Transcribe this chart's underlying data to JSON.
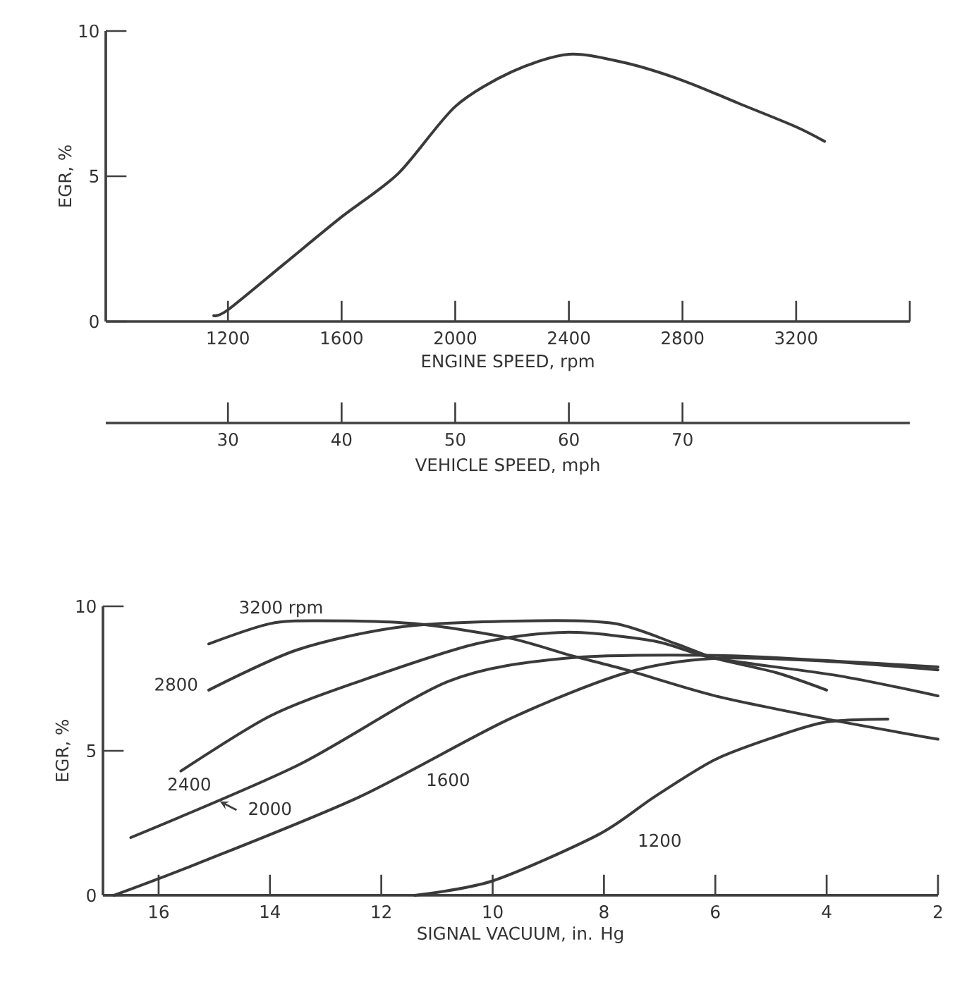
{
  "chart_data": [
    {
      "type": "line",
      "xlabel": "ENGINE SPEED, rpm",
      "ylabel": "EGR, %",
      "x2label": "VEHICLE SPEED, mph",
      "xlim": [
        770,
        3600
      ],
      "xticks": [
        1200,
        1600,
        2000,
        2400,
        2800,
        3200,
        {
          "value": 3600,
          "label": null
        }
      ],
      "x2lim": [
        19.25,
        90
      ],
      "x2ticks": [
        30,
        40,
        50,
        60,
        70
      ],
      "ylim": [
        0,
        10
      ],
      "yticks": [
        0,
        5,
        10
      ],
      "series": [
        {
          "color": "#3a3a3a",
          "x": [
            1150,
            1200,
            1400,
            1600,
            1800,
            2000,
            2200,
            2400,
            2600,
            2800,
            3000,
            3200,
            3300
          ],
          "values": [
            0.2,
            0.4,
            2.0,
            3.6,
            5.1,
            7.4,
            8.6,
            9.2,
            8.9,
            8.3,
            7.5,
            6.7,
            6.2
          ]
        }
      ]
    },
    {
      "type": "line",
      "xlabel": "SIGNAL VACUUM, in. Hg",
      "ylabel": "EGR, %",
      "xlim": [
        17,
        2
      ],
      "xticks": [
        16,
        14,
        12,
        10,
        8,
        6,
        4,
        2
      ],
      "ylim": [
        0,
        10
      ],
      "yticks": [
        0,
        5,
        10
      ],
      "series": [
        {
          "name": "3200 rpm",
          "color": "#3a3a3a",
          "x": [
            15.1,
            14.0,
            13.1,
            11.4,
            9.7,
            8.6,
            7.6,
            6.0,
            4.0,
            2.0
          ],
          "values": [
            8.7,
            9.4,
            9.5,
            9.4,
            8.9,
            8.3,
            7.8,
            6.9,
            6.1,
            5.4
          ]
        },
        {
          "name": "2800",
          "color": "#3a3a3a",
          "x": [
            15.1,
            13.5,
            11.6,
            9.2,
            7.8,
            6.7,
            6.0,
            4.9,
            4.0
          ],
          "values": [
            7.1,
            8.5,
            9.3,
            9.5,
            9.4,
            8.7,
            8.2,
            7.7,
            7.1
          ]
        },
        {
          "name": "2400",
          "color": "#3a3a3a",
          "x": [
            15.6,
            14.0,
            12.4,
            10.3,
            8.7,
            7.1,
            6.0,
            3.8,
            2.0
          ],
          "values": [
            4.3,
            6.2,
            7.4,
            8.7,
            9.1,
            8.8,
            8.2,
            7.6,
            6.9
          ]
        },
        {
          "name": "2000",
          "color": "#3a3a3a",
          "x": [
            16.5,
            13.5,
            10.8,
            8.7,
            6.0,
            3.8,
            2.0
          ],
          "values": [
            2.0,
            4.5,
            7.4,
            8.2,
            8.3,
            8.1,
            7.9
          ]
        },
        {
          "name": "1600",
          "color": "#3a3a3a",
          "x": [
            16.8,
            15.3,
            12.4,
            9.7,
            7.6,
            6.0,
            4.0,
            2.0
          ],
          "values": [
            0,
            1.1,
            3.4,
            6.1,
            7.7,
            8.2,
            8.1,
            7.8
          ]
        },
        {
          "name": "1200",
          "color": "#3a3a3a",
          "x": [
            11.4,
            10.0,
            8.1,
            7.1,
            6.0,
            4.9,
            4.0,
            2.9
          ],
          "values": [
            0,
            0.5,
            2.1,
            3.4,
            4.7,
            5.5,
            6.0,
            6.1
          ]
        }
      ]
    }
  ]
}
